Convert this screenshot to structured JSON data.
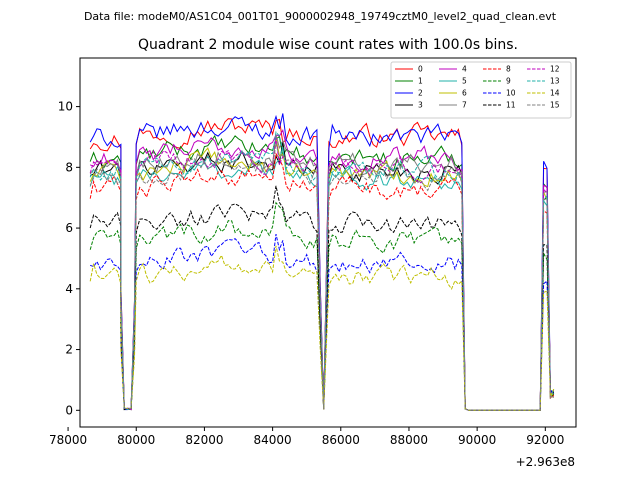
{
  "chart_data": {
    "type": "line",
    "suptitle": "Data file: modeM0/AS1C04_001T01_9000002948_19749cztM0_level2_quad_clean.evt",
    "title": "Quadrant 2 module wise count rates with 100.0s bins.",
    "xlabel": "",
    "ylabel": "",
    "x_offset_label": "+2.963e8",
    "xlim": [
      78350,
      92900
    ],
    "ylim": [
      -0.55,
      11.6
    ],
    "xticks": [
      78000,
      80000,
      82000,
      84000,
      86000,
      88000,
      90000,
      92000
    ],
    "xtick_labels": [
      "78000",
      "80000",
      "82000",
      "84000",
      "86000",
      "88000",
      "90000",
      "92000"
    ],
    "yticks": [
      0,
      2,
      4,
      6,
      8,
      10
    ],
    "ytick_labels": [
      "0",
      "2",
      "4",
      "6",
      "8",
      "10"
    ],
    "grid": false,
    "legend_position": "top-right",
    "segments": [
      {
        "start": 78650,
        "end": 79550,
        "shape": "active"
      },
      {
        "start": 79550,
        "end": 79950,
        "shape": "dip"
      },
      {
        "start": 80000,
        "end": 85350,
        "shape": "active"
      },
      {
        "start": 85400,
        "end": 85550,
        "shape": "dip"
      },
      {
        "start": 85650,
        "end": 89550,
        "shape": "active"
      },
      {
        "start": 89650,
        "end": 91850,
        "shape": "zero"
      },
      {
        "start": 91950,
        "end": 92050,
        "shape": "spike"
      },
      {
        "start": 92150,
        "end": 92250,
        "shape": "tail"
      }
    ],
    "series": [
      {
        "name": "0",
        "color": "#ff0000",
        "style": "solid",
        "level": 9.0
      },
      {
        "name": "1",
        "color": "#008000",
        "style": "solid",
        "level": 8.3
      },
      {
        "name": "2",
        "color": "#0000ff",
        "style": "solid",
        "level": 9.0
      },
      {
        "name": "3",
        "color": "#000000",
        "style": "solid",
        "level": 7.9
      },
      {
        "name": "4",
        "color": "#bf00bf",
        "style": "solid",
        "level": 8.3
      },
      {
        "name": "5",
        "color": "#20b2aa",
        "style": "solid",
        "level": 7.6
      },
      {
        "name": "6",
        "color": "#bfbf00",
        "style": "solid",
        "level": 7.8
      },
      {
        "name": "7",
        "color": "#808080",
        "style": "solid",
        "level": 8.1
      },
      {
        "name": "8",
        "color": "#ff0000",
        "style": "dashed",
        "level": 7.3
      },
      {
        "name": "9",
        "color": "#008000",
        "style": "dashed",
        "level": 5.6
      },
      {
        "name": "10",
        "color": "#0000ff",
        "style": "dashed",
        "level": 4.8
      },
      {
        "name": "11",
        "color": "#000000",
        "style": "dashed",
        "level": 6.1
      },
      {
        "name": "12",
        "color": "#bf00bf",
        "style": "dashed",
        "level": 8.0
      },
      {
        "name": "13",
        "color": "#20b2aa",
        "style": "dashed",
        "level": 7.9
      },
      {
        "name": "14",
        "color": "#bfbf00",
        "style": "dashed",
        "level": 4.4
      },
      {
        "name": "15",
        "color": "#808080",
        "style": "dashed",
        "level": 7.7
      }
    ]
  }
}
